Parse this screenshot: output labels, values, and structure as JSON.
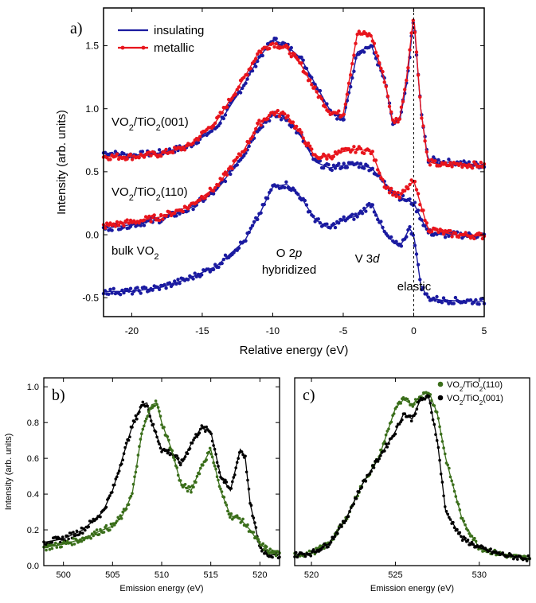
{
  "chart_data": [
    {
      "panel": "a)",
      "type": "scatter",
      "xlabel": "Relative energy (eV)",
      "ylabel": "Intensity (arb. units)",
      "xlim": [
        -22,
        5
      ],
      "ylim": [
        -0.65,
        1.8
      ],
      "xticks": [
        -20,
        -15,
        -10,
        -5,
        0,
        5
      ],
      "yticks": [
        -0.5,
        0.0,
        0.5,
        1.0,
        1.5
      ],
      "legend_position": "top-left",
      "legend": [
        {
          "name": "insulating",
          "color": "#1a1aa0"
        },
        {
          "name": "metallic",
          "color": "#e8141c"
        }
      ],
      "annotations": {
        "vo2_001": {
          "pre": "VO",
          "s1": "2",
          "mid": "/TiO",
          "s2": "2",
          "post": "(001)"
        },
        "vo2_110": {
          "pre": "VO",
          "s1": "2",
          "mid": "/TiO",
          "s2": "2",
          "post": "(110)"
        },
        "bulk": {
          "pre": "bulk VO",
          "s1": "2"
        },
        "o2p_line1": {
          "pre": "O 2",
          "ital": "p"
        },
        "o2p_line2": "hybridized",
        "v3d": {
          "pre": "V 3",
          "ital": "d"
        },
        "elastic": "elastic"
      },
      "series": [
        {
          "name": "insulating",
          "group": "VO2/TiO2(001)",
          "color": "#1a1aa0",
          "x": [
            -22,
            -20,
            -18,
            -16,
            -14,
            -12,
            -11,
            -10,
            -9,
            -8,
            -7,
            -6,
            -5,
            -4,
            -3,
            -2,
            -1.5,
            -1,
            -0.5,
            0,
            0.5,
            1,
            2,
            3,
            5
          ],
          "y": [
            0.65,
            0.63,
            0.65,
            0.7,
            0.85,
            1.2,
            1.4,
            1.55,
            1.5,
            1.4,
            1.2,
            1.0,
            0.9,
            1.45,
            1.5,
            1.2,
            0.88,
            0.9,
            1.2,
            1.72,
            1.0,
            0.6,
            0.58,
            0.57,
            0.55
          ]
        },
        {
          "name": "metallic",
          "group": "VO2/TiO2(001)",
          "color": "#e8141c",
          "x": [
            -22,
            -20,
            -18,
            -16,
            -14,
            -12,
            -11,
            -10,
            -9,
            -8,
            -7,
            -6,
            -5,
            -4,
            -3,
            -2,
            -1.5,
            -1,
            -0.5,
            0,
            0.5,
            1,
            2,
            3,
            5
          ],
          "y": [
            0.62,
            0.62,
            0.64,
            0.7,
            0.9,
            1.25,
            1.45,
            1.52,
            1.48,
            1.35,
            1.15,
            0.98,
            0.95,
            1.6,
            1.58,
            1.2,
            0.9,
            0.92,
            1.25,
            1.75,
            1.0,
            0.58,
            0.55,
            0.56,
            0.55
          ]
        },
        {
          "name": "insulating",
          "group": "VO2/TiO2(110)",
          "color": "#1a1aa0",
          "x": [
            -22,
            -20,
            -18,
            -16,
            -14,
            -12,
            -11,
            -10,
            -9,
            -8,
            -7,
            -6,
            -5,
            -4,
            -3,
            -2,
            -1,
            0,
            1,
            2,
            3,
            5
          ],
          "y": [
            0.05,
            0.08,
            0.12,
            0.2,
            0.35,
            0.65,
            0.85,
            0.95,
            0.92,
            0.78,
            0.58,
            0.53,
            0.55,
            0.56,
            0.53,
            0.4,
            0.3,
            0.25,
            0.02,
            0.0,
            0.0,
            -0.01
          ]
        },
        {
          "name": "metallic",
          "group": "VO2/TiO2(110)",
          "color": "#e8141c",
          "x": [
            -22,
            -20,
            -18,
            -16,
            -14,
            -12,
            -11,
            -10,
            -9,
            -8,
            -7,
            -6,
            -5,
            -4,
            -3,
            -2,
            -1,
            0,
            1,
            2,
            3,
            5
          ],
          "y": [
            0.07,
            0.1,
            0.14,
            0.22,
            0.38,
            0.68,
            0.88,
            0.97,
            0.95,
            0.8,
            0.62,
            0.62,
            0.66,
            0.68,
            0.66,
            0.38,
            0.3,
            0.43,
            0.05,
            0.02,
            0.0,
            -0.01
          ]
        },
        {
          "name": "insulating",
          "group": "bulk VO2",
          "color": "#1a1aa0",
          "x": [
            -22,
            -20,
            -18,
            -16,
            -14,
            -12,
            -11,
            -10,
            -9,
            -8,
            -7,
            -6,
            -5,
            -4,
            -3.5,
            -3,
            -2,
            -1,
            -0.3,
            0,
            0.5,
            1,
            2,
            5
          ],
          "y": [
            -0.45,
            -0.45,
            -0.42,
            -0.35,
            -0.25,
            -0.05,
            0.15,
            0.38,
            0.4,
            0.3,
            0.12,
            0.05,
            0.12,
            0.15,
            0.2,
            0.25,
            0.0,
            -0.1,
            0.05,
            0.0,
            -0.4,
            -0.5,
            -0.52,
            -0.53
          ]
        }
      ]
    },
    {
      "panel": "b)",
      "type": "scatter",
      "xlabel": "Emission energy (eV)",
      "ylabel": "Intensity (arb. units)",
      "xlim": [
        498,
        522
      ],
      "ylim": [
        0,
        1.05
      ],
      "xticks": [
        500,
        505,
        510,
        515,
        520
      ],
      "yticks": [
        0.0,
        0.2,
        0.4,
        0.6,
        0.8,
        1.0
      ],
      "series": [
        {
          "name": "VO2/TiO2(001)",
          "color": "#000000",
          "x": [
            498,
            500,
            502,
            504,
            505,
            506,
            507,
            508,
            508.5,
            509,
            510,
            511,
            512,
            513,
            514,
            515,
            516,
            517,
            518,
            518.5,
            519,
            520,
            521,
            522
          ],
          "y": [
            0.13,
            0.15,
            0.2,
            0.3,
            0.42,
            0.6,
            0.78,
            0.9,
            0.91,
            0.8,
            0.65,
            0.63,
            0.57,
            0.68,
            0.77,
            0.75,
            0.5,
            0.42,
            0.65,
            0.61,
            0.35,
            0.1,
            0.06,
            0.06
          ]
        },
        {
          "name": "VO2/TiO2(110)",
          "color": "#3a6e1a",
          "x": [
            498,
            500,
            502,
            504,
            505,
            506,
            507,
            508,
            509,
            509.5,
            510,
            511,
            512,
            513,
            514,
            515,
            516,
            517,
            518,
            519,
            520,
            521,
            522
          ],
          "y": [
            0.1,
            0.12,
            0.15,
            0.2,
            0.22,
            0.28,
            0.4,
            0.75,
            0.9,
            0.91,
            0.8,
            0.65,
            0.45,
            0.42,
            0.55,
            0.65,
            0.42,
            0.28,
            0.26,
            0.2,
            0.12,
            0.08,
            0.06
          ]
        }
      ]
    },
    {
      "panel": "c)",
      "type": "scatter",
      "xlabel": "Emission energy (eV)",
      "xlim": [
        519,
        533
      ],
      "ylim": [
        0,
        1.05
      ],
      "xticks": [
        520,
        525,
        530
      ],
      "legend_position": "top-right",
      "legend": [
        {
          "pre": "VO",
          "s1": "2",
          "mid": "/TiO",
          "s2": "2",
          "post": "(110)",
          "color": "#3a6e1a"
        },
        {
          "pre": "VO",
          "s1": "2",
          "mid": "/TiO",
          "s2": "2",
          "post": "(001)",
          "color": "#000000"
        }
      ],
      "series": [
        {
          "name": "VO2/TiO2(110)",
          "color": "#3a6e1a",
          "x": [
            519,
            520,
            521,
            522,
            523,
            524,
            525,
            525.5,
            526,
            526.5,
            527,
            527.5,
            528,
            529,
            530,
            531,
            532,
            533
          ],
          "y": [
            0.06,
            0.07,
            0.12,
            0.25,
            0.45,
            0.6,
            0.88,
            0.93,
            0.9,
            0.95,
            0.97,
            0.85,
            0.6,
            0.25,
            0.1,
            0.07,
            0.05,
            0.04
          ]
        },
        {
          "name": "VO2/TiO2(001)",
          "color": "#000000",
          "x": [
            519,
            520,
            521,
            522,
            523,
            524,
            525,
            525.5,
            526,
            526.5,
            527,
            527.5,
            528,
            529,
            530,
            531,
            532,
            533
          ],
          "y": [
            0.06,
            0.07,
            0.12,
            0.25,
            0.45,
            0.6,
            0.75,
            0.85,
            0.82,
            0.93,
            0.94,
            0.7,
            0.3,
            0.15,
            0.1,
            0.07,
            0.05,
            0.04
          ]
        }
      ]
    }
  ]
}
